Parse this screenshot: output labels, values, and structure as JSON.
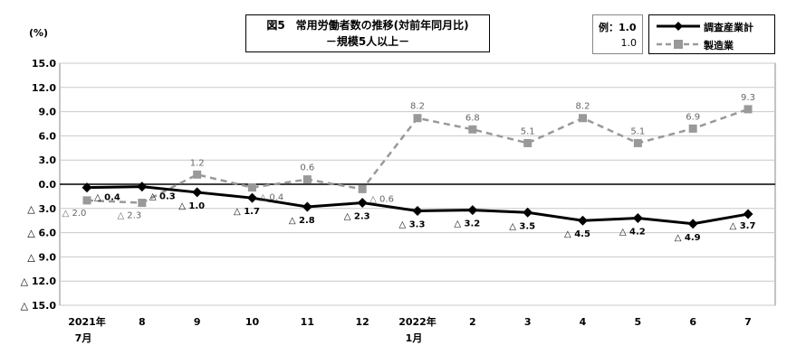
{
  "chart_data": {
    "type": "line",
    "title": "図5　常用労働者数の推移(対前年同月比)",
    "subtitle": "－規模5人以上－",
    "ylabel": "(%)",
    "ylim": [
      -15.0,
      15.0
    ],
    "yticks": [
      15.0,
      12.0,
      9.0,
      6.0,
      3.0,
      0.0,
      -3.0,
      -6.0,
      -9.0,
      -12.0,
      -15.0
    ],
    "ytick_labels": [
      "15.0",
      "12.0",
      "9.0",
      "6.0",
      "3.0",
      "0.0",
      "△ 3.0",
      "△ 6.0",
      "△ 9.0",
      "△ 12.0",
      "△ 15.0"
    ],
    "categories": [
      {
        "line1": "2021年",
        "line2": "7月"
      },
      {
        "line1": "8",
        "line2": ""
      },
      {
        "line1": "9",
        "line2": ""
      },
      {
        "line1": "10",
        "line2": ""
      },
      {
        "line1": "11",
        "line2": ""
      },
      {
        "line1": "12",
        "line2": ""
      },
      {
        "line1": "2022年",
        "line2": "1月"
      },
      {
        "line1": "2",
        "line2": ""
      },
      {
        "line1": "3",
        "line2": ""
      },
      {
        "line1": "4",
        "line2": ""
      },
      {
        "line1": "5",
        "line2": ""
      },
      {
        "line1": "6",
        "line2": ""
      },
      {
        "line1": "7",
        "line2": ""
      }
    ],
    "series": [
      {
        "name": "調査産業計",
        "color": "#000000",
        "marker": "diamond",
        "values": [
          -0.4,
          -0.3,
          -1.0,
          -1.7,
          -2.8,
          -2.3,
          -3.3,
          -3.2,
          -3.5,
          -4.5,
          -4.2,
          -4.9,
          -3.7
        ],
        "labels": [
          "△ 0.4",
          "△ 0.3",
          "△ 1.0",
          "△ 1.7",
          "△ 2.8",
          "△ 2.3",
          "△ 3.3",
          "△ 3.2",
          "△ 3.5",
          "△ 4.5",
          "△ 4.2",
          "△ 4.9",
          "△ 3.7"
        ]
      },
      {
        "name": "製造業",
        "color": "#999999",
        "marker": "square",
        "dashed": true,
        "values": [
          -2.0,
          -2.3,
          1.2,
          -0.4,
          0.6,
          -0.6,
          8.2,
          6.8,
          5.1,
          8.2,
          5.1,
          6.9,
          9.3
        ],
        "labels": [
          "△ 2.0",
          "△ 2.3",
          "1.2",
          "△ 0.4",
          "0.6",
          "△ 0.6",
          "8.2",
          "6.8",
          "5.1",
          "8.2",
          "5.1",
          "6.9",
          "9.3"
        ]
      }
    ],
    "example": {
      "label": "例：1.0",
      "value": "1.0"
    },
    "grid": true,
    "legend_placement": "top-right"
  }
}
